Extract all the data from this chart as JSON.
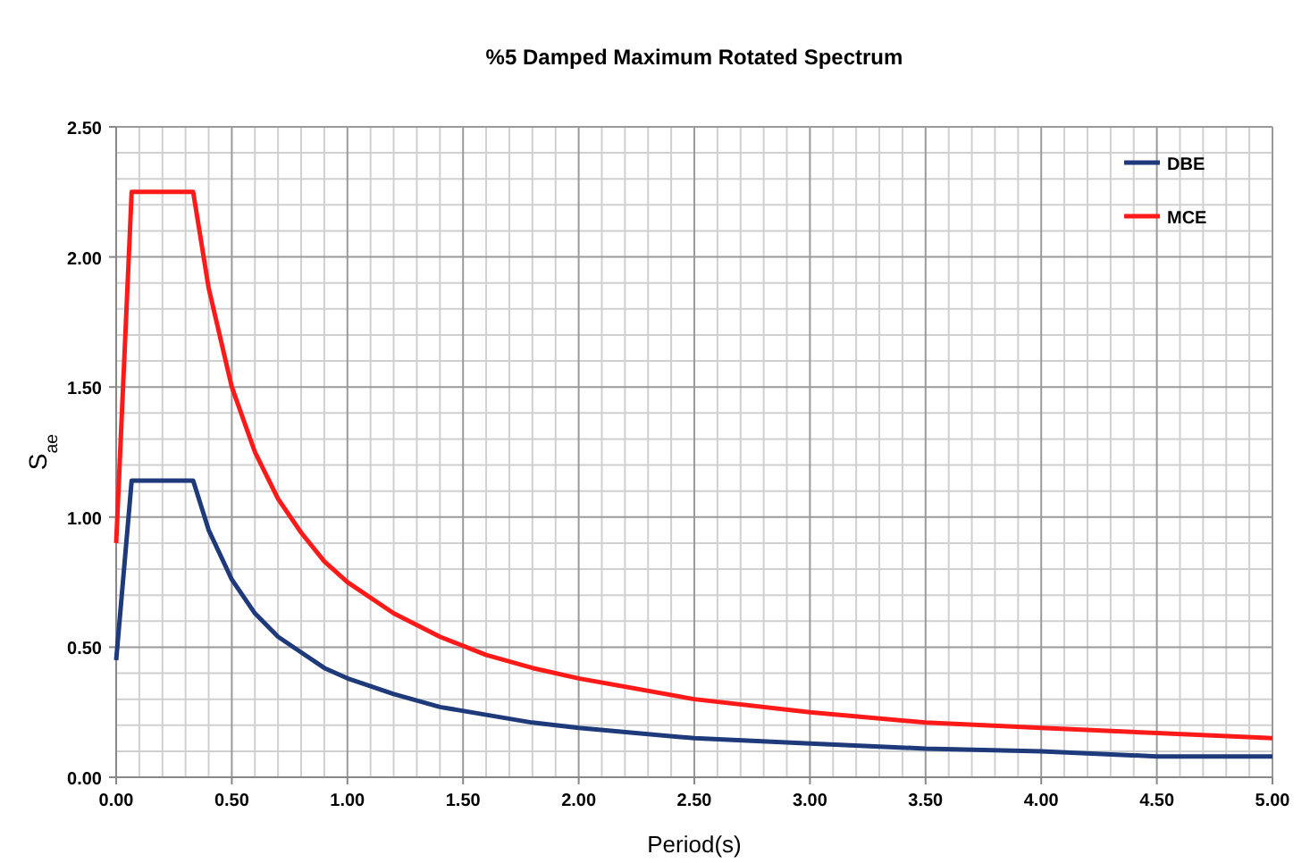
{
  "chart_data": {
    "type": "line",
    "title": "%5 Damped Maximum Rotated Spectrum",
    "xlabel": "Period(s)",
    "ylabel": "S$_{ae}$",
    "x": [
      0,
      0.067,
      0.1,
      0.2,
      0.333,
      0.4,
      0.5,
      0.6,
      0.7,
      0.8,
      0.9,
      1.0,
      1.2,
      1.4,
      1.6,
      1.8,
      2.0,
      2.5,
      3.0,
      3.5,
      4.0,
      4.5,
      5.0
    ],
    "series": [
      {
        "name": "DBE",
        "color": "#1f3a7a",
        "values": [
          0.45,
          1.14,
          1.14,
          1.14,
          1.14,
          0.95,
          0.76,
          0.63,
          0.54,
          0.48,
          0.42,
          0.38,
          0.32,
          0.27,
          0.24,
          0.21,
          0.19,
          0.15,
          0.13,
          0.11,
          0.1,
          0.08,
          0.08
        ]
      },
      {
        "name": "MCE",
        "color": "#ff1a1a",
        "values": [
          0.9,
          2.25,
          2.25,
          2.25,
          2.25,
          1.88,
          1.5,
          1.25,
          1.07,
          0.94,
          0.83,
          0.75,
          0.63,
          0.54,
          0.47,
          0.42,
          0.38,
          0.3,
          0.25,
          0.21,
          0.19,
          0.17,
          0.15
        ]
      }
    ],
    "xlim": [
      0,
      5
    ],
    "ylim": [
      0,
      2.5
    ],
    "xticks": [
      {
        "value": 0,
        "label": "0.00"
      },
      {
        "value": 0.5,
        "label": "0.50"
      },
      {
        "value": 1,
        "label": "1.00"
      },
      {
        "value": 1.5,
        "label": "1.50"
      },
      {
        "value": 2,
        "label": "2.00"
      },
      {
        "value": 2.5,
        "label": "2.50"
      },
      {
        "value": 3,
        "label": "3.00"
      },
      {
        "value": 3.5,
        "label": "3.50"
      },
      {
        "value": 4,
        "label": "4.00"
      },
      {
        "value": 4.5,
        "label": "4.50"
      },
      {
        "value": 5,
        "label": "5.00"
      }
    ],
    "yticks": [
      {
        "value": 0,
        "label": "0.00"
      },
      {
        "value": 0.5,
        "label": "0.50"
      },
      {
        "value": 1,
        "label": "1.00"
      },
      {
        "value": 1.5,
        "label": "1.50"
      },
      {
        "value": 2,
        "label": "2.00"
      },
      {
        "value": 2.5,
        "label": "2.50"
      }
    ],
    "grid": true,
    "legend": "top right",
    "marker": "none",
    "line_style": "solid"
  }
}
